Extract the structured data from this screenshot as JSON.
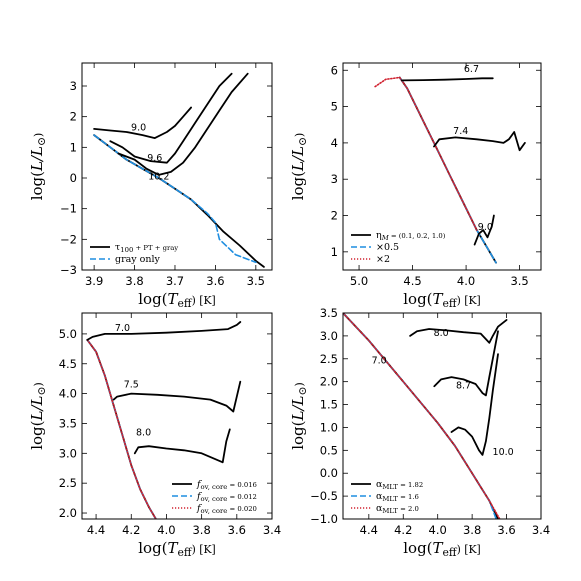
{
  "colors": {
    "black": "#000000",
    "blue": "#1f8ee0",
    "red": "#d0202e"
  },
  "chart_data": [
    {
      "type": "line",
      "panel": "top-left",
      "xlabel": "log(T_eff) [K]",
      "ylabel": "log(L/L_⊙)",
      "xlim": [
        3.93,
        3.46
      ],
      "ylim": [
        -3.0,
        3.75
      ],
      "xticks": [
        3.9,
        3.8,
        3.7,
        3.6,
        3.5
      ],
      "xtick_labels": [
        "3.9",
        "3.8",
        "3.7",
        "3.6",
        "3.5"
      ],
      "yticks": [
        -3,
        -2,
        -1,
        0,
        1,
        2,
        3
      ],
      "ytick_labels": [
        "−3",
        "−2",
        "−1",
        "0",
        "1",
        "2",
        "3"
      ],
      "legend": {
        "position": "lower-left",
        "entries": [
          "τ100 + PT + gray",
          "gray only"
        ]
      },
      "annotations": [
        {
          "text": "9.0",
          "x": 3.79,
          "y": 1.55
        },
        {
          "text": "9.6",
          "x": 3.75,
          "y": 0.55
        },
        {
          "text": "10.2",
          "x": 3.74,
          "y": -0.05
        }
      ],
      "series": [
        {
          "name": "τ100 + PT + gray",
          "style": "solid",
          "color": "black",
          "x": [
            3.9,
            3.86,
            3.82,
            3.78,
            3.74,
            3.7,
            3.66,
            3.62,
            3.58,
            3.54,
            3.5,
            3.48
          ],
          "y": [
            1.4,
            1.0,
            0.6,
            0.3,
            0.0,
            -0.35,
            -0.7,
            -1.2,
            -1.75,
            -2.2,
            -2.7,
            -2.9
          ]
        },
        {
          "name": "gray only",
          "style": "dashed",
          "color": "blue",
          "x": [
            3.9,
            3.86,
            3.82,
            3.78,
            3.74,
            3.7,
            3.66,
            3.62,
            3.6,
            3.59,
            3.55,
            3.5
          ],
          "y": [
            1.4,
            1.0,
            0.6,
            0.3,
            0.0,
            -0.35,
            -0.7,
            -1.15,
            -1.45,
            -2.0,
            -2.5,
            -2.75
          ]
        },
        {
          "name": "track 9.0",
          "style": "solid",
          "color": "black",
          "x": [
            3.9,
            3.86,
            3.82,
            3.78,
            3.75,
            3.72,
            3.7,
            3.68,
            3.66
          ],
          "y": [
            1.6,
            1.55,
            1.5,
            1.4,
            1.3,
            1.5,
            1.7,
            2.0,
            2.3
          ]
        },
        {
          "name": "track 9.6",
          "style": "solid",
          "color": "black",
          "x": [
            3.86,
            3.83,
            3.8,
            3.76,
            3.72,
            3.7,
            3.68,
            3.65,
            3.62,
            3.59,
            3.56
          ],
          "y": [
            1.2,
            1.0,
            0.7,
            0.55,
            0.5,
            0.8,
            1.2,
            1.8,
            2.4,
            3.0,
            3.4
          ]
        },
        {
          "name": "track 10.2",
          "style": "solid",
          "color": "black",
          "x": [
            3.84,
            3.8,
            3.77,
            3.74,
            3.71,
            3.68,
            3.65,
            3.62,
            3.59,
            3.56,
            3.52
          ],
          "y": [
            0.8,
            0.6,
            0.3,
            0.1,
            0.2,
            0.5,
            1.0,
            1.6,
            2.2,
            2.8,
            3.4
          ]
        }
      ]
    },
    {
      "type": "line",
      "panel": "top-right",
      "xlabel": "log(T_eff) [K]",
      "ylabel": "log(L/L_⊙)",
      "xlim": [
        5.15,
        3.3
      ],
      "ylim": [
        0.5,
        6.2
      ],
      "xticks": [
        5.0,
        4.5,
        4.0,
        3.5
      ],
      "xtick_labels": [
        "5.0",
        "4.5",
        "4.0",
        "3.5"
      ],
      "yticks": [
        1,
        2,
        3,
        4,
        5,
        6
      ],
      "ytick_labels": [
        "1",
        "2",
        "3",
        "4",
        "5",
        "6"
      ],
      "legend": {
        "position": "lower-left",
        "entries": [
          "ηM = (0.1, 0.2, 1.0)",
          "×0.5",
          "×2"
        ]
      },
      "annotations": [
        {
          "text": "6.7",
          "x": 3.95,
          "y": 5.95
        },
        {
          "text": "7.4",
          "x": 4.05,
          "y": 4.25
        },
        {
          "text": "9.0",
          "x": 3.82,
          "y": 1.6
        }
      ],
      "series": [
        {
          "name": "ηM = (0.1, 0.2, 1.0)",
          "style": "solid",
          "color": "black",
          "x": [
            4.62,
            4.55,
            4.45,
            4.3,
            4.15,
            4.0,
            3.9,
            3.8,
            3.72
          ],
          "y": [
            5.8,
            5.5,
            4.9,
            4.0,
            3.1,
            2.2,
            1.6,
            1.1,
            0.7
          ]
        },
        {
          "name": "×0.5",
          "style": "dashed",
          "color": "blue",
          "x": [
            4.62,
            4.55,
            4.45,
            4.3,
            4.15,
            4.0,
            3.9,
            3.8,
            3.72
          ],
          "y": [
            5.8,
            5.5,
            4.9,
            4.0,
            3.1,
            2.2,
            1.6,
            1.1,
            0.7
          ]
        },
        {
          "name": "×2",
          "style": "dotted",
          "color": "red",
          "x": [
            4.85,
            4.75,
            4.62,
            4.55,
            4.45,
            4.3,
            4.15,
            4.0,
            3.9
          ],
          "y": [
            5.55,
            5.75,
            5.8,
            5.5,
            4.9,
            4.0,
            3.1,
            2.2,
            1.6
          ]
        },
        {
          "name": "track 6.7",
          "style": "solid",
          "color": "black",
          "x": [
            4.6,
            4.4,
            4.2,
            4.0,
            3.85,
            3.75
          ],
          "y": [
            5.72,
            5.73,
            5.74,
            5.76,
            5.78,
            5.78
          ]
        },
        {
          "name": "track 7.4",
          "style": "solid",
          "color": "black",
          "x": [
            4.3,
            4.25,
            4.1,
            3.9,
            3.75,
            3.65,
            3.6,
            3.55,
            3.5,
            3.45
          ],
          "y": [
            3.9,
            4.1,
            4.15,
            4.1,
            4.05,
            4.0,
            4.1,
            4.3,
            3.8,
            4.0
          ]
        },
        {
          "name": "track 9.0",
          "style": "solid",
          "color": "black",
          "x": [
            3.92,
            3.88,
            3.84,
            3.8,
            3.78,
            3.76,
            3.74
          ],
          "y": [
            1.2,
            1.5,
            1.6,
            1.4,
            1.55,
            1.7,
            2.0
          ]
        }
      ]
    },
    {
      "type": "line",
      "panel": "bottom-left",
      "xlabel": "log(T_eff) [K]",
      "ylabel": "log(L/L_⊙)",
      "xlim": [
        4.48,
        3.4
      ],
      "ylim": [
        1.9,
        5.35
      ],
      "xticks": [
        4.4,
        4.2,
        4.0,
        3.8,
        3.6,
        3.4
      ],
      "xtick_labels": [
        "4.4",
        "4.2",
        "4.0",
        "3.8",
        "3.6",
        "3.4"
      ],
      "yticks": [
        2.0,
        2.5,
        3.0,
        3.5,
        4.0,
        4.5,
        5.0
      ],
      "ytick_labels": [
        "2.0",
        "2.5",
        "3.0",
        "3.5",
        "4.0",
        "4.5",
        "5.0"
      ],
      "legend": {
        "position": "lower-right",
        "entries": [
          "fov, core = 0.016",
          "fov, core = 0.012",
          "fov, core = 0.020"
        ]
      },
      "annotations": [
        {
          "text": "7.0",
          "x": 4.25,
          "y": 5.05
        },
        {
          "text": "7.5",
          "x": 4.2,
          "y": 4.1
        },
        {
          "text": "8.0",
          "x": 4.13,
          "y": 3.3
        }
      ],
      "series": [
        {
          "name": "fov, core = 0.016",
          "style": "solid",
          "color": "black",
          "x": [
            4.45,
            4.4,
            4.35,
            4.3,
            4.25,
            4.2,
            4.15,
            4.1,
            4.06
          ],
          "y": [
            4.9,
            4.7,
            4.3,
            3.8,
            3.3,
            2.8,
            2.4,
            2.1,
            1.9
          ]
        },
        {
          "name": "fov, core = 0.012",
          "style": "dashed",
          "color": "blue",
          "x": [
            4.45,
            4.4,
            4.35,
            4.3,
            4.25,
            4.2,
            4.15,
            4.1,
            4.06
          ],
          "y": [
            4.9,
            4.7,
            4.3,
            3.8,
            3.3,
            2.8,
            2.4,
            2.1,
            1.9
          ]
        },
        {
          "name": "fov, core = 0.020",
          "style": "dotted",
          "color": "red",
          "x": [
            4.45,
            4.4,
            4.35,
            4.3,
            4.25,
            4.2,
            4.15,
            4.1,
            4.06
          ],
          "y": [
            4.9,
            4.7,
            4.3,
            3.8,
            3.3,
            2.8,
            2.4,
            2.1,
            1.9
          ]
        },
        {
          "name": "track 7.0",
          "style": "solid",
          "color": "black",
          "x": [
            4.45,
            4.42,
            4.35,
            4.2,
            4.0,
            3.8,
            3.65,
            3.6,
            3.58
          ],
          "y": [
            4.9,
            4.95,
            5.0,
            5.0,
            5.02,
            5.05,
            5.08,
            5.15,
            5.2
          ]
        },
        {
          "name": "track 7.5",
          "style": "solid",
          "color": "black",
          "x": [
            4.3,
            4.28,
            4.2,
            4.05,
            3.9,
            3.75,
            3.66,
            3.62,
            3.6,
            3.58
          ],
          "y": [
            3.9,
            3.95,
            4.0,
            3.98,
            3.95,
            3.9,
            3.8,
            3.7,
            3.95,
            4.2
          ]
        },
        {
          "name": "track 8.0",
          "style": "solid",
          "color": "black",
          "x": [
            4.18,
            4.16,
            4.1,
            4.0,
            3.9,
            3.8,
            3.72,
            3.68,
            3.66,
            3.64
          ],
          "y": [
            3.0,
            3.1,
            3.12,
            3.08,
            3.05,
            3.0,
            2.9,
            2.85,
            3.2,
            3.4
          ]
        }
      ]
    },
    {
      "type": "line",
      "panel": "bottom-right",
      "xlabel": "log(T_eff) [K]",
      "ylabel": "log(L/L_⊙)",
      "xlim": [
        4.55,
        3.4
      ],
      "ylim": [
        -1.0,
        3.5
      ],
      "xticks": [
        4.4,
        4.2,
        4.0,
        3.8,
        3.6,
        3.4
      ],
      "xtick_labels": [
        "4.4",
        "4.2",
        "4.0",
        "3.8",
        "3.6",
        "3.4"
      ],
      "yticks": [
        -1.0,
        -0.5,
        0.0,
        0.5,
        1.0,
        1.5,
        2.0,
        2.5,
        3.0,
        3.5
      ],
      "ytick_labels": [
        "−1.0",
        "−0.5",
        "0.0",
        "0.5",
        "1.0",
        "1.5",
        "2.0",
        "2.5",
        "3.0",
        "3.5"
      ],
      "legend": {
        "position": "lower-left",
        "entries": [
          "αMLT = 1.82",
          "αMLT = 1.6",
          "αMLT = 2.0"
        ]
      },
      "annotations": [
        {
          "text": "7.0",
          "x": 4.34,
          "y": 2.4
        },
        {
          "text": "8.0",
          "x": 3.98,
          "y": 3.0
        },
        {
          "text": "8.7",
          "x": 3.85,
          "y": 1.85
        },
        {
          "text": "10.0",
          "x": 3.62,
          "y": 0.4
        }
      ],
      "series": [
        {
          "name": "αMLT = 1.82",
          "style": "solid",
          "color": "black",
          "x": [
            4.55,
            4.4,
            4.2,
            4.0,
            3.9,
            3.85,
            3.8,
            3.75,
            3.7,
            3.65
          ],
          "y": [
            3.5,
            2.9,
            2.0,
            1.1,
            0.6,
            0.3,
            0.0,
            -0.3,
            -0.6,
            -1.0
          ]
        },
        {
          "name": "αMLT = 1.6",
          "style": "dashed",
          "color": "blue",
          "x": [
            4.55,
            4.4,
            4.2,
            4.0,
            3.9,
            3.85,
            3.8,
            3.75,
            3.7,
            3.66
          ],
          "y": [
            3.5,
            2.9,
            2.0,
            1.1,
            0.6,
            0.3,
            0.0,
            -0.3,
            -0.6,
            -1.0
          ]
        },
        {
          "name": "αMLT = 2.0",
          "style": "dotted",
          "color": "red",
          "x": [
            4.55,
            4.4,
            4.2,
            4.0,
            3.9,
            3.85,
            3.8,
            3.75,
            3.7,
            3.64
          ],
          "y": [
            3.5,
            2.9,
            2.0,
            1.1,
            0.6,
            0.3,
            0.0,
            -0.3,
            -0.6,
            -1.0
          ]
        },
        {
          "name": "track 8.0",
          "style": "solid",
          "color": "black",
          "x": [
            4.16,
            4.12,
            4.05,
            3.95,
            3.85,
            3.75,
            3.7,
            3.68,
            3.65,
            3.6
          ],
          "y": [
            3.0,
            3.1,
            3.15,
            3.12,
            3.08,
            3.05,
            2.85,
            3.0,
            3.2,
            3.35
          ]
        },
        {
          "name": "track 8.7",
          "style": "solid",
          "color": "black",
          "x": [
            4.02,
            3.98,
            3.92,
            3.85,
            3.78,
            3.74,
            3.72,
            3.7,
            3.68,
            3.65
          ],
          "y": [
            1.9,
            2.05,
            2.1,
            2.05,
            1.95,
            1.75,
            1.7,
            2.1,
            2.5,
            3.1
          ]
        },
        {
          "name": "track 10.0",
          "style": "solid",
          "color": "black",
          "x": [
            3.92,
            3.88,
            3.84,
            3.8,
            3.76,
            3.74,
            3.72,
            3.7,
            3.68,
            3.65
          ],
          "y": [
            0.9,
            1.0,
            0.95,
            0.8,
            0.5,
            0.4,
            0.7,
            1.2,
            1.8,
            2.6
          ]
        }
      ]
    }
  ]
}
